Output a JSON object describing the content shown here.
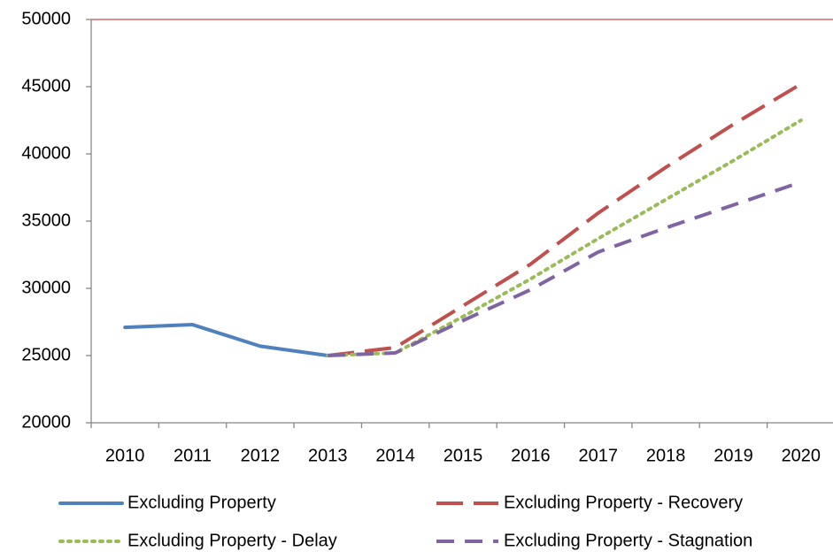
{
  "chart_data": {
    "type": "line",
    "categories": [
      "2010",
      "2011",
      "2012",
      "2013",
      "2014",
      "2015",
      "2016",
      "2017",
      "2018",
      "2019",
      "2020"
    ],
    "series": [
      {
        "name": "Excluding Property",
        "color": "#4f81bd",
        "dash": "solid",
        "values": [
          27100,
          27300,
          25700,
          25000,
          null,
          null,
          null,
          null,
          null,
          null,
          null
        ]
      },
      {
        "name": "Excluding Property - Recovery",
        "color": "#c0504d",
        "dash": "longdash",
        "values": [
          null,
          null,
          null,
          25000,
          25600,
          28700,
          31800,
          35600,
          39000,
          42200,
          45200
        ]
      },
      {
        "name": "Excluding Property - Delay",
        "color": "#9bbb59",
        "dash": "dot",
        "values": [
          null,
          null,
          null,
          25000,
          25200,
          27900,
          30700,
          33700,
          36600,
          39500,
          42500
        ]
      },
      {
        "name": "Excluding Property - Stagnation",
        "color": "#8064a2",
        "dash": "dash",
        "values": [
          null,
          null,
          null,
          25000,
          25200,
          27600,
          29900,
          32700,
          34500,
          36200,
          37900
        ]
      }
    ],
    "ylim": [
      20000,
      50000
    ],
    "yticks": [
      20000,
      25000,
      30000,
      35000,
      40000,
      45000,
      50000
    ]
  }
}
